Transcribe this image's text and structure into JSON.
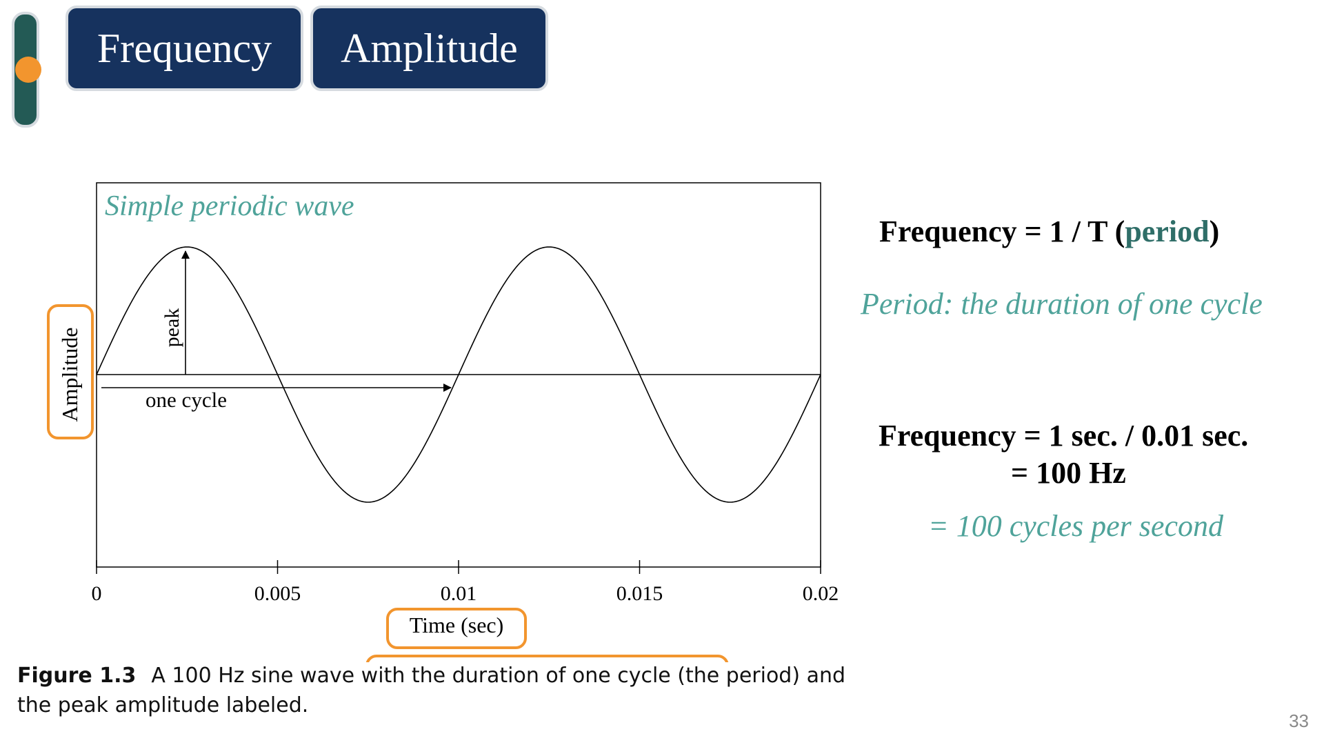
{
  "tabs": [
    {
      "label": "Frequency"
    },
    {
      "label": "Amplitude"
    }
  ],
  "colors": {
    "tab_bg": "#16325e",
    "accent_teal": "#4fa39a",
    "highlight_orange": "#f2952e",
    "slider_track": "#235a55"
  },
  "figure": {
    "title": "Simple periodic wave",
    "peak_label": "peak",
    "cycle_label": "one cycle",
    "ylabel": "Amplitude",
    "xlabel": "Time (sec)"
  },
  "chart_data": {
    "type": "line",
    "title": "Simple periodic wave",
    "xlabel": "Time (sec)",
    "ylabel": "Amplitude",
    "xlim": [
      0,
      0.02
    ],
    "xticks": [
      "0",
      "0.005",
      "0.01",
      "0.015",
      "0.02"
    ],
    "xtick_values": [
      0,
      0.005,
      0.01,
      0.015,
      0.02
    ],
    "frequency_hz": 100,
    "amplitude": 1,
    "ylim": [
      -1.5,
      1.5
    ],
    "annotations": [
      "peak",
      "one cycle"
    ]
  },
  "caption": {
    "figure_label": "Figure 1.3",
    "pre": "A 100 Hz sine wave with",
    "highlighted": "the duration of one cycle (the period)",
    "post": "and the peak amplitude labeled."
  },
  "equations": {
    "line1_pre": "Frequency = 1 /  T (",
    "line1_period": "period",
    "line1_post": ")",
    "period_definition": "Period: the duration of one cycle",
    "line2": "Frequency = 1 sec. / 0.01 sec.",
    "line3": "= 100 Hz",
    "line4": "= 100 cycles per second"
  },
  "page_number": "33"
}
